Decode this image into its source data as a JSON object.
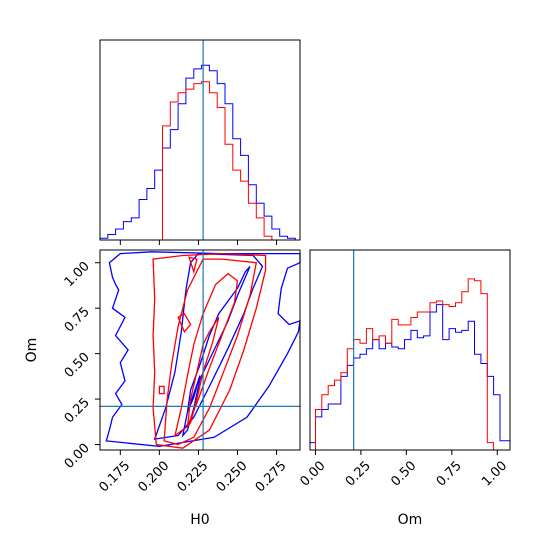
{
  "chart_data": {
    "type": "corner",
    "colors": {
      "series_a": "#ff0000",
      "series_b": "#0000ff",
      "truth": "#1f77b4",
      "axes": "#000000"
    },
    "axis_labels": {
      "h0": "H0",
      "om": "Om"
    },
    "truth": {
      "H0": 0.228,
      "Om": 0.21
    },
    "h0_ticks": [
      {
        "v": 0.175,
        "label": "0.175"
      },
      {
        "v": 0.2,
        "label": "0.200"
      },
      {
        "v": 0.225,
        "label": "0.225"
      },
      {
        "v": 0.25,
        "label": "0.250"
      },
      {
        "v": 0.275,
        "label": "0.275"
      }
    ],
    "om_ticks": [
      {
        "v": 0.0,
        "label": "0.00"
      },
      {
        "v": 0.25,
        "label": "0.25"
      },
      {
        "v": 0.5,
        "label": "0.50"
      },
      {
        "v": 0.75,
        "label": "0.75"
      },
      {
        "v": 1.0,
        "label": "1.00"
      }
    ],
    "h0_range": [
      0.162,
      0.29
    ],
    "om_range": [
      -0.03,
      1.07
    ],
    "hist_h0": {
      "bin_edges": [
        0.162,
        0.167,
        0.172,
        0.177,
        0.182,
        0.187,
        0.192,
        0.197,
        0.202,
        0.207,
        0.212,
        0.217,
        0.222,
        0.227,
        0.232,
        0.237,
        0.242,
        0.247,
        0.252,
        0.257,
        0.262,
        0.267,
        0.272,
        0.277,
        0.282,
        0.287,
        0.29
      ],
      "blue": [
        0.01,
        0.03,
        0.06,
        0.1,
        0.12,
        0.22,
        0.28,
        0.38,
        0.5,
        0.6,
        0.74,
        0.88,
        0.93,
        0.95,
        0.92,
        0.85,
        0.74,
        0.55,
        0.46,
        0.3,
        0.2,
        0.13,
        0.06,
        0.02,
        0.01,
        0.0
      ],
      "red": [
        0.0,
        0.0,
        0.0,
        0.0,
        0.0,
        0.0,
        0.0,
        0.0,
        0.62,
        0.75,
        0.8,
        0.82,
        0.85,
        0.86,
        0.8,
        0.72,
        0.52,
        0.38,
        0.32,
        0.2,
        0.12,
        0.02,
        0.0,
        0.0,
        0.0,
        0.0
      ]
    },
    "hist_om": {
      "bin_edges": [
        -0.03,
        0.0,
        0.035,
        0.07,
        0.105,
        0.14,
        0.175,
        0.21,
        0.245,
        0.28,
        0.315,
        0.35,
        0.385,
        0.42,
        0.455,
        0.49,
        0.525,
        0.56,
        0.595,
        0.63,
        0.665,
        0.7,
        0.735,
        0.77,
        0.805,
        0.84,
        0.875,
        0.91,
        0.945,
        0.98,
        1.015,
        1.05,
        1.07
      ],
      "blue": [
        0.04,
        0.18,
        0.22,
        0.25,
        0.25,
        0.4,
        0.46,
        0.5,
        0.52,
        0.55,
        0.6,
        0.55,
        0.58,
        0.56,
        0.55,
        0.6,
        0.65,
        0.61,
        0.62,
        0.75,
        0.79,
        0.6,
        0.66,
        0.64,
        0.65,
        0.7,
        0.52,
        0.47,
        0.4,
        0.3,
        0.05,
        0.05
      ],
      "red": [
        0.0,
        0.22,
        0.3,
        0.35,
        0.38,
        0.42,
        0.55,
        0.6,
        0.58,
        0.66,
        0.6,
        0.62,
        0.58,
        0.71,
        0.68,
        0.68,
        0.72,
        0.75,
        0.75,
        0.8,
        0.81,
        0.79,
        0.78,
        0.8,
        0.86,
        0.93,
        0.92,
        0.85,
        0.04,
        0.0,
        0.0,
        0.0
      ]
    },
    "contours_blue": [
      [
        [
          0.166,
          0.02
        ],
        [
          0.2,
          -0.01
        ],
        [
          0.235,
          0.04
        ],
        [
          0.256,
          0.15
        ],
        [
          0.27,
          0.32
        ],
        [
          0.282,
          0.5
        ],
        [
          0.289,
          0.62
        ],
        [
          0.29,
          0.68
        ],
        [
          0.283,
          0.66
        ],
        [
          0.276,
          0.72
        ],
        [
          0.278,
          0.86
        ],
        [
          0.282,
          0.97
        ],
        [
          0.29,
          1.0
        ],
        [
          0.29,
          1.05
        ],
        [
          0.24,
          1.05
        ],
        [
          0.195,
          1.06
        ],
        [
          0.175,
          1.05
        ],
        [
          0.168,
          1.0
        ],
        [
          0.17,
          0.92
        ],
        [
          0.172,
          0.88
        ],
        [
          0.174,
          0.85
        ],
        [
          0.17,
          0.75
        ],
        [
          0.178,
          0.7
        ],
        [
          0.172,
          0.6
        ],
        [
          0.18,
          0.52
        ],
        [
          0.175,
          0.45
        ],
        [
          0.178,
          0.35
        ],
        [
          0.172,
          0.28
        ],
        [
          0.176,
          0.22
        ],
        [
          0.17,
          0.15
        ],
        [
          0.168,
          0.08
        ],
        [
          0.166,
          0.02
        ]
      ],
      [
        [
          0.197,
          0.03
        ],
        [
          0.204,
          0.2
        ],
        [
          0.21,
          0.4
        ],
        [
          0.214,
          0.62
        ],
        [
          0.217,
          0.85
        ],
        [
          0.22,
          1.0
        ],
        [
          0.225,
          1.05
        ],
        [
          0.26,
          1.04
        ],
        [
          0.266,
          0.98
        ],
        [
          0.26,
          0.86
        ],
        [
          0.254,
          0.72
        ],
        [
          0.244,
          0.53
        ],
        [
          0.232,
          0.32
        ],
        [
          0.222,
          0.15
        ],
        [
          0.212,
          0.05
        ],
        [
          0.197,
          0.03
        ]
      ],
      [
        [
          0.215,
          0.05
        ],
        [
          0.218,
          0.18
        ],
        [
          0.22,
          0.3
        ],
        [
          0.226,
          0.44
        ],
        [
          0.232,
          0.6
        ],
        [
          0.238,
          0.72
        ],
        [
          0.25,
          0.86
        ],
        [
          0.255,
          0.95
        ],
        [
          0.258,
          0.98
        ],
        [
          0.25,
          0.82
        ],
        [
          0.244,
          0.68
        ],
        [
          0.235,
          0.52
        ],
        [
          0.226,
          0.36
        ],
        [
          0.222,
          0.2
        ],
        [
          0.218,
          0.08
        ],
        [
          0.215,
          0.05
        ]
      ],
      [
        [
          0.218,
          0.18
        ],
        [
          0.222,
          0.28
        ],
        [
          0.226,
          0.38
        ],
        [
          0.222,
          0.26
        ],
        [
          0.218,
          0.18
        ]
      ]
    ],
    "contours_red": [
      [
        [
          0.196,
          1.02
        ],
        [
          0.197,
          0.8
        ],
        [
          0.196,
          0.6
        ],
        [
          0.197,
          0.4
        ],
        [
          0.196,
          0.2
        ],
        [
          0.198,
          0.0
        ],
        [
          0.215,
          -0.02
        ],
        [
          0.232,
          0.08
        ],
        [
          0.245,
          0.3
        ],
        [
          0.254,
          0.52
        ],
        [
          0.262,
          0.75
        ],
        [
          0.268,
          0.96
        ],
        [
          0.268,
          1.04
        ],
        [
          0.24,
          1.05
        ],
        [
          0.215,
          1.04
        ],
        [
          0.196,
          1.02
        ]
      ],
      [
        [
          0.203,
          0.02
        ],
        [
          0.205,
          0.25
        ],
        [
          0.208,
          0.45
        ],
        [
          0.212,
          0.65
        ],
        [
          0.218,
          0.85
        ],
        [
          0.228,
          1.02
        ],
        [
          0.24,
          1.02
        ],
        [
          0.262,
          1.0
        ],
        [
          0.258,
          0.82
        ],
        [
          0.25,
          0.6
        ],
        [
          0.242,
          0.42
        ],
        [
          0.232,
          0.2
        ],
        [
          0.222,
          0.04
        ],
        [
          0.212,
          0.0
        ],
        [
          0.203,
          0.02
        ]
      ],
      [
        [
          0.21,
          0.05
        ],
        [
          0.214,
          0.2
        ],
        [
          0.218,
          0.38
        ],
        [
          0.222,
          0.55
        ],
        [
          0.228,
          0.72
        ],
        [
          0.236,
          0.88
        ],
        [
          0.244,
          0.94
        ],
        [
          0.25,
          0.9
        ],
        [
          0.248,
          0.78
        ],
        [
          0.24,
          0.6
        ],
        [
          0.232,
          0.42
        ],
        [
          0.225,
          0.25
        ],
        [
          0.218,
          0.1
        ],
        [
          0.21,
          0.05
        ]
      ],
      [
        [
          0.218,
          0.1
        ],
        [
          0.22,
          0.25
        ],
        [
          0.224,
          0.4
        ],
        [
          0.228,
          0.55
        ],
        [
          0.232,
          0.62
        ],
        [
          0.238,
          0.7
        ],
        [
          0.234,
          0.56
        ],
        [
          0.228,
          0.4
        ],
        [
          0.224,
          0.25
        ],
        [
          0.22,
          0.12
        ],
        [
          0.218,
          0.1
        ]
      ],
      [
        [
          0.2,
          0.28
        ],
        [
          0.203,
          0.28
        ],
        [
          0.203,
          0.32
        ],
        [
          0.2,
          0.32
        ],
        [
          0.2,
          0.28
        ]
      ],
      [
        [
          0.212,
          0.7
        ],
        [
          0.216,
          0.62
        ],
        [
          0.22,
          0.66
        ],
        [
          0.216,
          0.72
        ],
        [
          0.212,
          0.7
        ]
      ],
      [
        [
          0.219,
          1.03
        ],
        [
          0.222,
          0.95
        ],
        [
          0.224,
          1.02
        ],
        [
          0.219,
          1.03
        ]
      ]
    ]
  }
}
